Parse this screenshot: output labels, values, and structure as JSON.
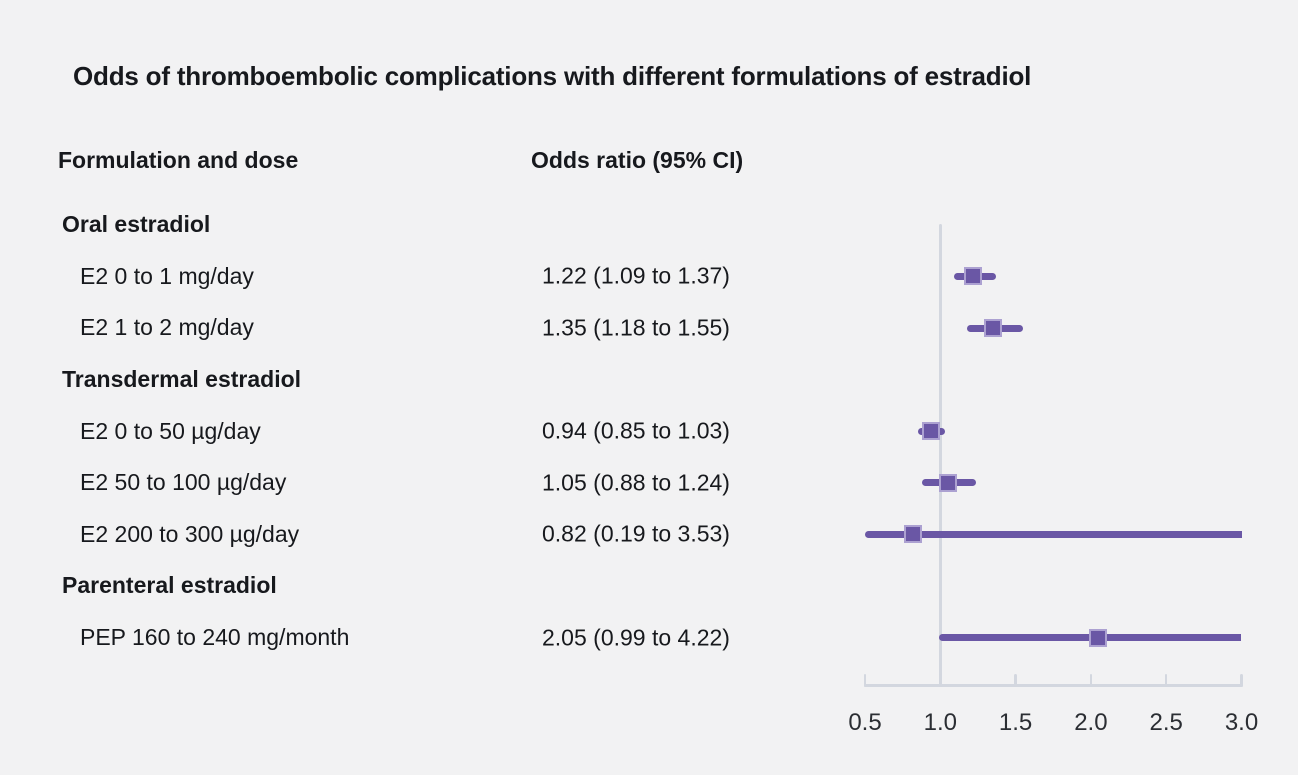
{
  "title": "Odds of thromboembolic complications with different formulations of estradiol",
  "columns": {
    "left_header": "Formulation and dose",
    "right_header": "Odds ratio (95% CI)"
  },
  "colors": {
    "background": "#f2f2f3",
    "marker_fill": "#6a57a5",
    "marker_border": "#aca1d1",
    "ci_line": "#6a57a5",
    "axis": "#d3d7df",
    "text": "#17191d"
  },
  "chart_data": {
    "type": "forest",
    "title": "Odds of thromboembolic complications with different formulations of estradiol",
    "xlabel": "",
    "axis": {
      "range": [
        0.5,
        3.0
      ],
      "ticks": [
        0.5,
        1.0,
        1.5,
        2.0,
        2.5,
        3.0
      ],
      "tick_labels": [
        "0.5",
        "1.0",
        "1.5",
        "2.0",
        "2.5",
        "3.0"
      ],
      "reference_line": 1.0,
      "grid": false
    },
    "rows": [
      {
        "kind": "group",
        "label": "Oral estradiol"
      },
      {
        "kind": "item",
        "label": "E2 0 to 1 mg/day",
        "value_text": "1.22 (1.09 to 1.37)",
        "or": 1.22,
        "ci_low": 1.09,
        "ci_high": 1.37
      },
      {
        "kind": "item",
        "label": "E2 1 to 2 mg/day",
        "value_text": "1.35 (1.18 to 1.55)",
        "or": 1.35,
        "ci_low": 1.18,
        "ci_high": 1.55
      },
      {
        "kind": "group",
        "label": "Transdermal estradiol"
      },
      {
        "kind": "item",
        "label": "E2 0 to 50 µg/day",
        "value_text": "0.94 (0.85 to 1.03)",
        "or": 0.94,
        "ci_low": 0.85,
        "ci_high": 1.03
      },
      {
        "kind": "item",
        "label": "E2 50 to 100 µg/day",
        "value_text": "1.05 (0.88 to 1.24)",
        "or": 1.05,
        "ci_low": 0.88,
        "ci_high": 1.24
      },
      {
        "kind": "item",
        "label": "E2 200 to 300 µg/day",
        "value_text": "0.82 (0.19 to 3.53)",
        "or": 0.82,
        "ci_low": 0.19,
        "ci_high": 3.53
      },
      {
        "kind": "group",
        "label": "Parenteral estradiol"
      },
      {
        "kind": "item",
        "label": "PEP 160 to 240 mg/month",
        "value_text": "2.05 (0.99 to 4.22)",
        "or": 2.05,
        "ci_low": 0.99,
        "ci_high": 4.22
      }
    ]
  }
}
